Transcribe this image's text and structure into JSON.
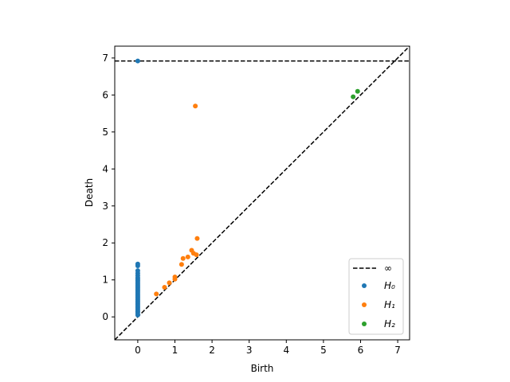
{
  "chart_data": {
    "type": "scatter",
    "title": "",
    "xlabel": "Birth",
    "ylabel": "Death",
    "xlim": [
      -0.62,
      7.32
    ],
    "ylim": [
      -0.62,
      7.32
    ],
    "x_ticks": [
      0,
      1,
      2,
      3,
      4,
      5,
      6,
      7
    ],
    "y_ticks": [
      0,
      1,
      2,
      3,
      4,
      5,
      6,
      7
    ],
    "grid": false,
    "legend_position": "lower-right",
    "diagonal": {
      "style": "dashed",
      "color": "#000000"
    },
    "infinity_line": {
      "y": 6.92,
      "label": "∞",
      "style": "dashed",
      "color": "#000000"
    },
    "series": [
      {
        "name": "H₀",
        "color": "#1f77b4",
        "points": [
          [
            0,
            0.05
          ],
          [
            0,
            0.1
          ],
          [
            0,
            0.14
          ],
          [
            0,
            0.18
          ],
          [
            0,
            0.22
          ],
          [
            0,
            0.26
          ],
          [
            0,
            0.3
          ],
          [
            0,
            0.34
          ],
          [
            0,
            0.38
          ],
          [
            0,
            0.42
          ],
          [
            0,
            0.46
          ],
          [
            0,
            0.5
          ],
          [
            0,
            0.54
          ],
          [
            0,
            0.58
          ],
          [
            0,
            0.62
          ],
          [
            0,
            0.66
          ],
          [
            0,
            0.7
          ],
          [
            0,
            0.74
          ],
          [
            0,
            0.78
          ],
          [
            0,
            0.82
          ],
          [
            0,
            0.86
          ],
          [
            0,
            0.9
          ],
          [
            0,
            0.94
          ],
          [
            0,
            0.98
          ],
          [
            0,
            1.02
          ],
          [
            0,
            1.06
          ],
          [
            0,
            1.12
          ],
          [
            0,
            1.18
          ],
          [
            0,
            1.25
          ],
          [
            0,
            1.38
          ],
          [
            0,
            1.43
          ],
          [
            0,
            6.92
          ]
        ]
      },
      {
        "name": "H₁",
        "color": "#ff7f0e",
        "points": [
          [
            0.5,
            0.62
          ],
          [
            0.72,
            0.8
          ],
          [
            0.85,
            0.92
          ],
          [
            1.0,
            1.08
          ],
          [
            1.0,
            1.02
          ],
          [
            1.18,
            1.42
          ],
          [
            1.22,
            1.58
          ],
          [
            1.35,
            1.62
          ],
          [
            1.45,
            1.8
          ],
          [
            1.5,
            1.72
          ],
          [
            1.58,
            1.68
          ],
          [
            1.6,
            2.12
          ],
          [
            1.55,
            5.7
          ]
        ]
      },
      {
        "name": "H₂",
        "color": "#2ca02c",
        "points": [
          [
            5.8,
            5.95
          ],
          [
            5.92,
            6.1
          ]
        ]
      }
    ]
  }
}
